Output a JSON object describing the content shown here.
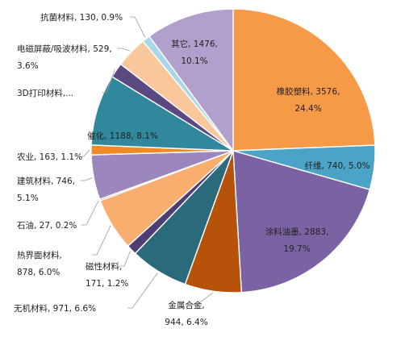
{
  "chart_data": {
    "type": "pie",
    "title": "",
    "slices": [
      {
        "name": "橡胶塑料",
        "value": 3576,
        "pct": "24.4%",
        "color": "#F79A48",
        "label": [
          "橡胶塑料, 3576,",
          "24.4%"
        ]
      },
      {
        "name": "纤维",
        "value": 740,
        "pct": "5.0%",
        "color": "#4BA3C7",
        "label": [
          "纤维, 740, 5.0%"
        ]
      },
      {
        "name": "涂料油墨",
        "value": 2883,
        "pct": "19.7%",
        "color": "#7B62A3",
        "label": [
          "涂料油墨, 2883,",
          "19.7%"
        ]
      },
      {
        "name": "金属合金",
        "value": 944,
        "pct": "6.4%",
        "color": "#B7520A",
        "label": [
          "金属合金,",
          "944, 6.4%"
        ]
      },
      {
        "name": "无机材料",
        "value": 971,
        "pct": "6.6%",
        "color": "#2A6A7A",
        "label": [
          "无机材料, 971, 6.6%"
        ]
      },
      {
        "name": "磁性材料",
        "value": 171,
        "pct": "1.2%",
        "color": "#4F3D75",
        "label": [
          "磁性材料,",
          "171, 1.2%"
        ]
      },
      {
        "name": "热界面材料",
        "value": 878,
        "pct": "6.0%",
        "color": "#F8AE6E",
        "label": [
          "热界面材料,",
          "878, 6.0%"
        ]
      },
      {
        "name": "石油",
        "value": 27,
        "pct": "0.2%",
        "color": "#B3A1CC",
        "label": [
          "石油, 27, 0.2%"
        ]
      },
      {
        "name": "建筑材料",
        "value": 746,
        "pct": "5.1%",
        "color": "#9B86BD",
        "label": [
          "建筑材料, 746,",
          "5.1%"
        ]
      },
      {
        "name": "农业",
        "value": 163,
        "pct": "1.1%",
        "color": "#F08A24",
        "label": [
          "农业, 163, 1.1%"
        ]
      },
      {
        "name": "催化",
        "value": 1188,
        "pct": "8.1%",
        "color": "#31879C",
        "label": [
          "催化, 1188, 8.1%"
        ]
      },
      {
        "name": "3D打印材料",
        "value": 250,
        "pct": "",
        "color": "#5B4A82",
        "label": [
          "3D打印材料,..."
        ]
      },
      {
        "name": "电磁屏蔽/吸波材料",
        "value": 529,
        "pct": "3.6%",
        "color": "#F9C79B",
        "label": [
          "电磁屏蔽/吸波材料, 529,",
          "3.6%"
        ]
      },
      {
        "name": "抗菌材料",
        "value": 130,
        "pct": "0.9%",
        "color": "#A9D6E9",
        "label": [
          "抗菌材料, 130, 0.9%"
        ]
      },
      {
        "name": "其它",
        "value": 1476,
        "pct": "10.1%",
        "color": "#B1A0CB",
        "label": [
          "其它, 1476,",
          "10.1%"
        ]
      }
    ]
  }
}
